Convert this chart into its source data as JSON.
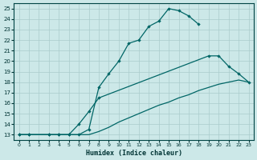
{
  "xlabel": "Humidex (Indice chaleur)",
  "bg_color": "#cce8e8",
  "grid_color": "#aacccc",
  "line_color": "#006666",
  "xlim": [
    -0.5,
    23.5
  ],
  "ylim": [
    12.5,
    25.5
  ],
  "xticks": [
    0,
    1,
    2,
    3,
    4,
    5,
    6,
    7,
    8,
    9,
    10,
    11,
    12,
    13,
    14,
    15,
    16,
    17,
    18,
    19,
    20,
    21,
    22,
    23
  ],
  "yticks": [
    13,
    14,
    15,
    16,
    17,
    18,
    19,
    20,
    21,
    22,
    23,
    24,
    25
  ],
  "line1_x": [
    0,
    1,
    3,
    4,
    5,
    6,
    7,
    8,
    9,
    10,
    11,
    12,
    13,
    14,
    15,
    16,
    17,
    18
  ],
  "line1_y": [
    13,
    13,
    13,
    13,
    13,
    13,
    13.5,
    17.5,
    18.8,
    20.0,
    21.7,
    22.0,
    23.3,
    23.8,
    25.0,
    24.8,
    24.3,
    23.5
  ],
  "line2_x": [
    0,
    1,
    3,
    4,
    5,
    6,
    7,
    8,
    19,
    20,
    21,
    22,
    23
  ],
  "line2_y": [
    13,
    13,
    13,
    13,
    13,
    14,
    15.2,
    16.5,
    20.5,
    20.5,
    19.5,
    18.8,
    18.0
  ],
  "line3_x": [
    0,
    1,
    2,
    3,
    4,
    5,
    6,
    7,
    8,
    9,
    10,
    11,
    12,
    13,
    14,
    15,
    16,
    17,
    18,
    19,
    20,
    21,
    22,
    23
  ],
  "line3_y": [
    13,
    13,
    13,
    13,
    13,
    13,
    13,
    13,
    13.3,
    13.7,
    14.2,
    14.6,
    15.0,
    15.4,
    15.8,
    16.1,
    16.5,
    16.8,
    17.2,
    17.5,
    17.8,
    18.0,
    18.2,
    18.0
  ]
}
